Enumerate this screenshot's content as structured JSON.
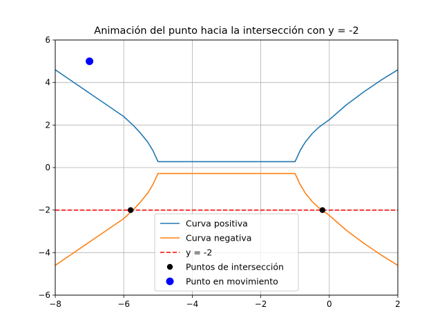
{
  "chart_data": {
    "type": "line",
    "title": "Animación del punto hacia la intersección con y = -2",
    "xlabel": "",
    "ylabel": "",
    "xlim": [
      -8,
      2
    ],
    "ylim": [
      -6,
      6
    ],
    "xticks": [
      -8,
      -6,
      -4,
      -2,
      0,
      2
    ],
    "yticks": [
      -6,
      -4,
      -2,
      0,
      2,
      4,
      6
    ],
    "grid": true,
    "legend_position": "lower center",
    "series": [
      {
        "name": "Curva positiva",
        "color": "#1f77b4",
        "style": "solid",
        "x": [
          -8,
          -7.5,
          -7,
          -6.5,
          -6,
          -5.7,
          -5.5,
          -5.3,
          -5.15,
          -5.05,
          -5,
          -1,
          -0.95,
          -0.85,
          -0.7,
          -0.5,
          -0.3,
          0,
          0.5,
          1,
          1.5,
          2
        ],
        "y": [
          4.6,
          4.05,
          3.5,
          2.95,
          2.4,
          1.95,
          1.6,
          1.2,
          0.8,
          0.45,
          0.28,
          0.28,
          0.45,
          0.8,
          1.2,
          1.6,
          1.9,
          2.25,
          2.95,
          3.55,
          4.1,
          4.6
        ]
      },
      {
        "name": "Curva negativa",
        "color": "#ff7f0e",
        "style": "solid",
        "x": [
          -8,
          -7.5,
          -7,
          -6.5,
          -6,
          -5.7,
          -5.5,
          -5.3,
          -5.15,
          -5.05,
          -5,
          -1,
          -0.95,
          -0.85,
          -0.7,
          -0.5,
          -0.3,
          0,
          0.5,
          1,
          1.5,
          2
        ],
        "y": [
          -4.6,
          -4.05,
          -3.5,
          -2.95,
          -2.4,
          -1.95,
          -1.6,
          -1.2,
          -0.8,
          -0.45,
          -0.28,
          -0.28,
          -0.45,
          -0.8,
          -1.2,
          -1.6,
          -1.9,
          -2.25,
          -2.95,
          -3.55,
          -4.1,
          -4.6
        ]
      },
      {
        "name": "y = -2",
        "color": "#ff0000",
        "style": "dashed",
        "x": [
          -8,
          2
        ],
        "y": [
          -2,
          -2
        ]
      }
    ],
    "points": [
      {
        "name": "Puntos de intersección",
        "color": "#000000",
        "x": [
          -5.8,
          -0.2
        ],
        "y": [
          -2,
          -2
        ]
      },
      {
        "name": "Punto en movimiento",
        "color": "#0000ff",
        "x": [
          -7
        ],
        "y": [
          5
        ]
      }
    ]
  }
}
